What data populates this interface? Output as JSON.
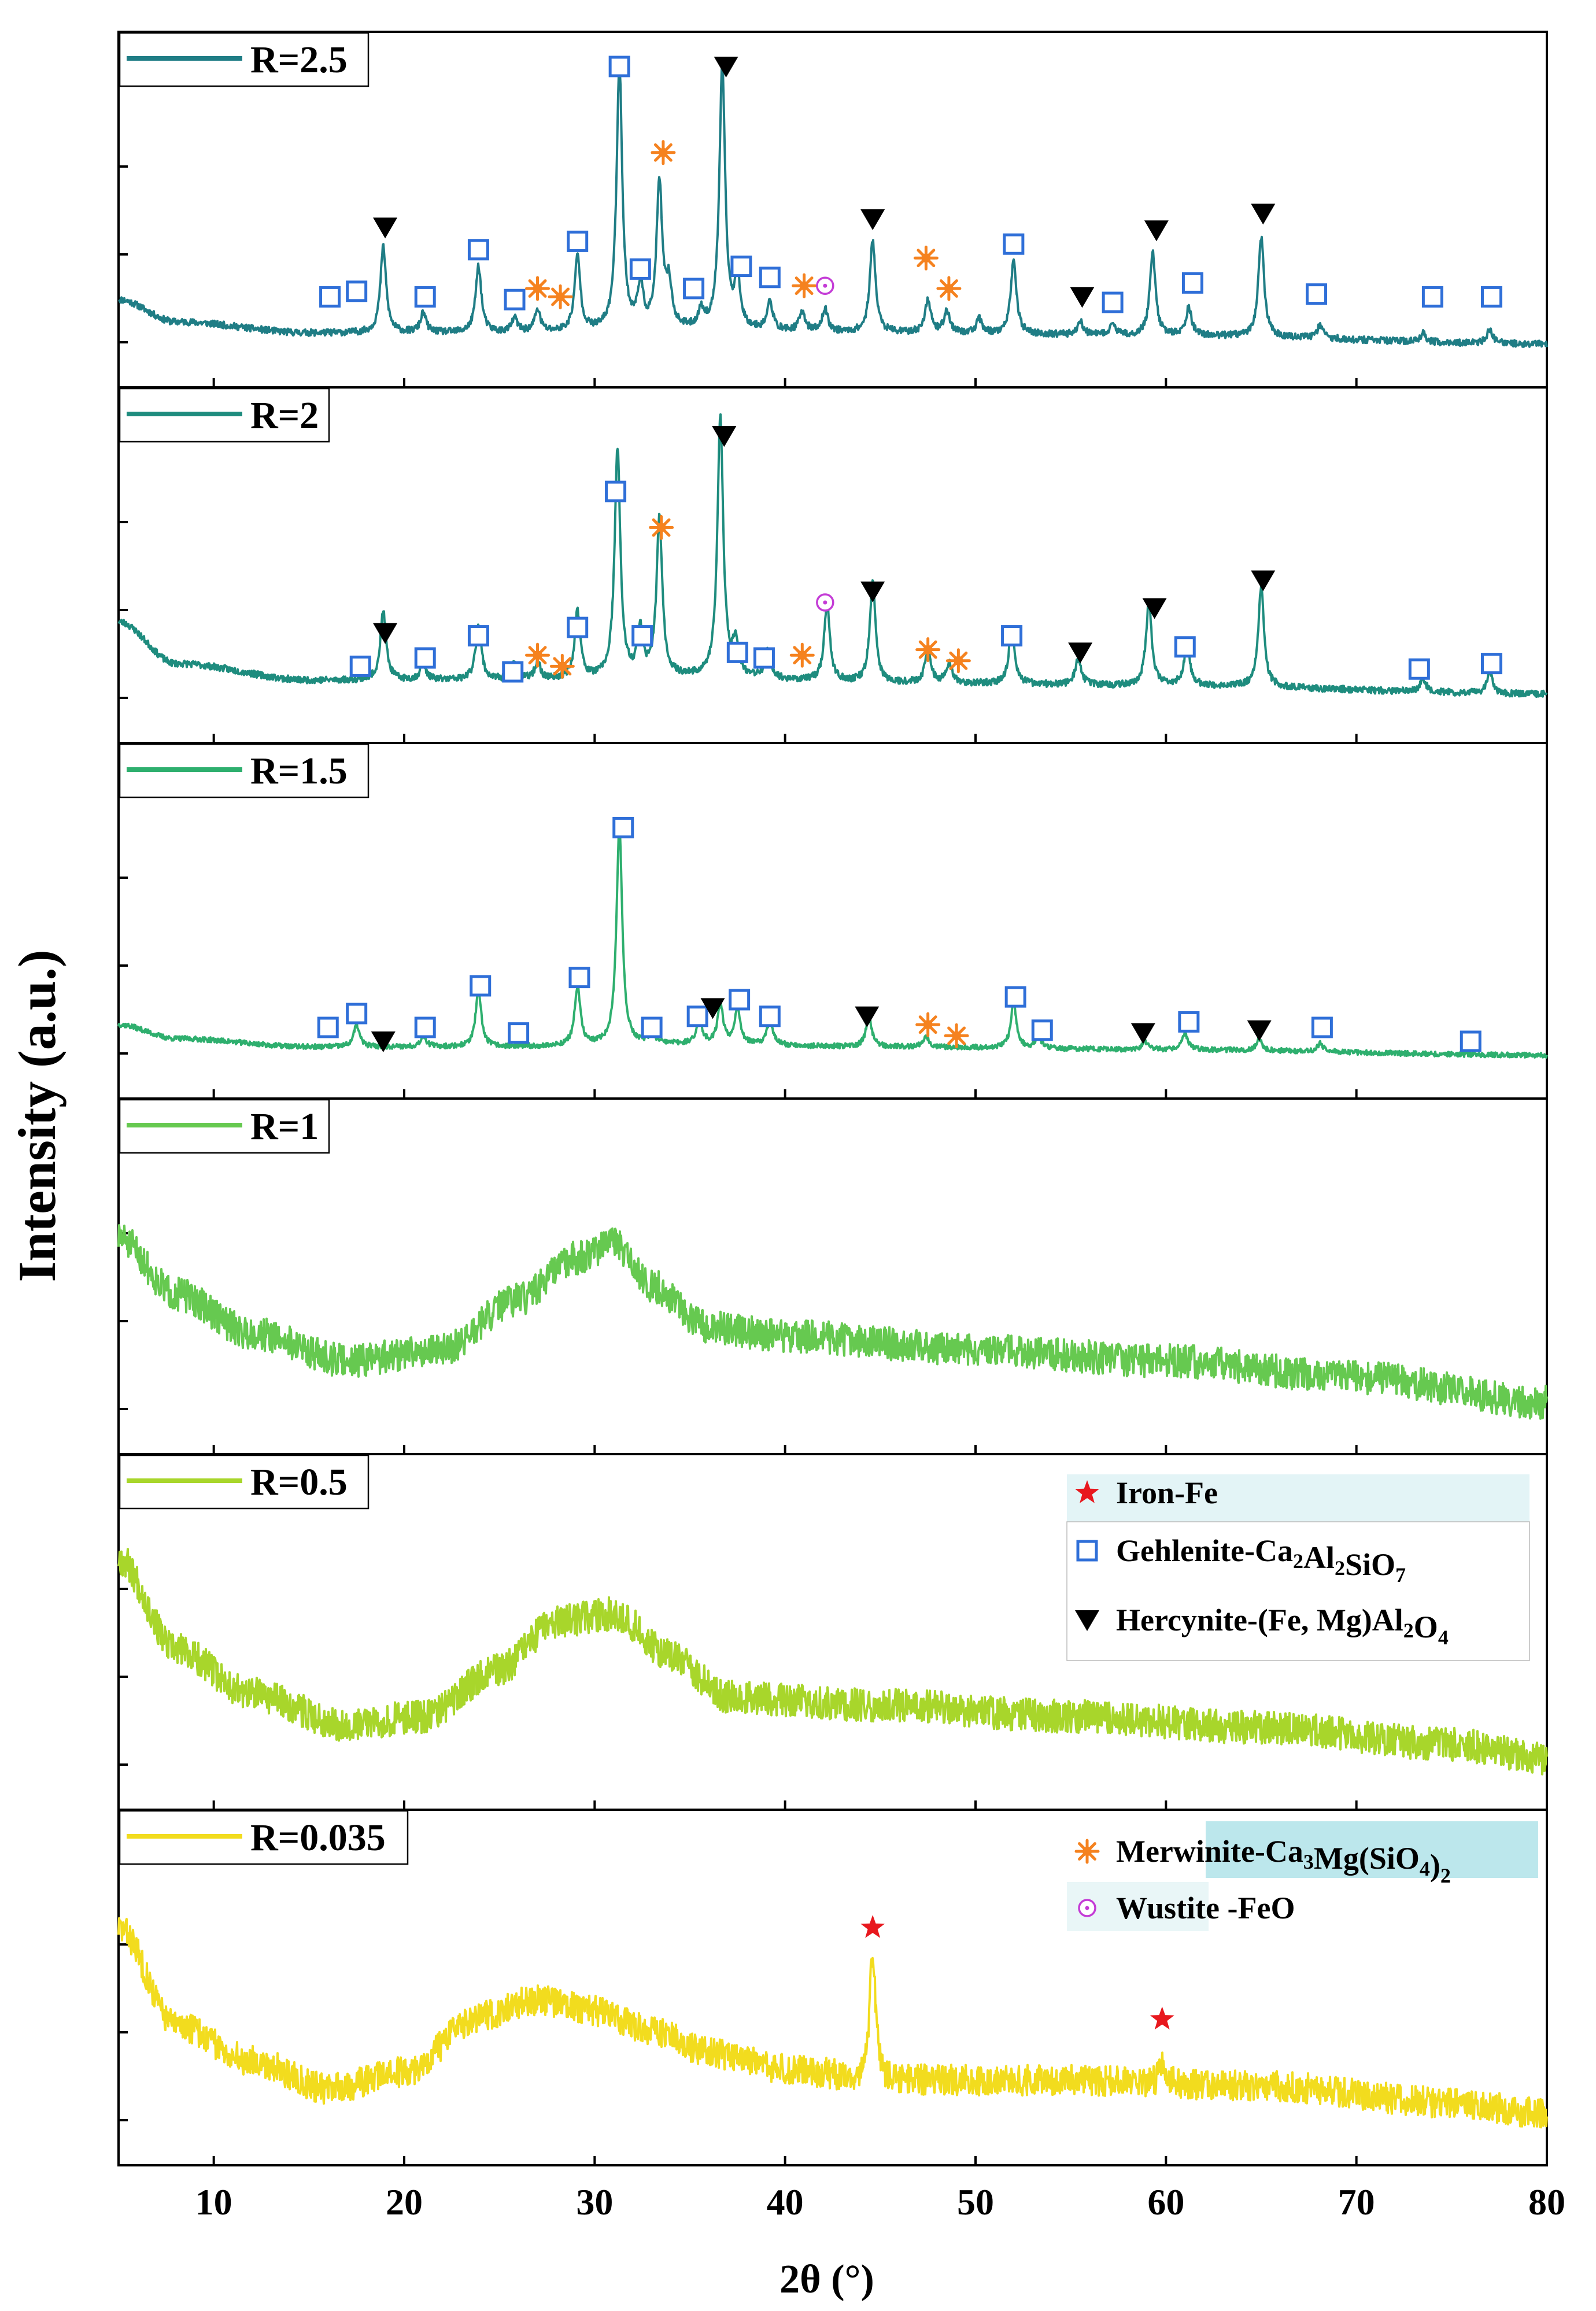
{
  "chart_data": {
    "type": "line",
    "title": "",
    "xlabel": "2θ (°)",
    "ylabel": "Intensity (a.u.)",
    "xlim": [
      5,
      80
    ],
    "xticks": [
      10,
      20,
      30,
      40,
      50,
      60,
      70,
      80
    ],
    "xtick_labels": [
      "10",
      "20",
      "30",
      "40",
      "50",
      "60",
      "70",
      "80"
    ],
    "panels": [
      {
        "label": "R=2.5",
        "color": "#1f7d85",
        "baseline": [
          [
            5,
            0.16
          ],
          [
            8,
            0.08
          ],
          [
            15,
            0.04
          ],
          [
            25,
            0.04
          ],
          [
            35,
            0.05
          ],
          [
            45,
            0.04
          ],
          [
            60,
            0.03
          ],
          [
            80,
            0.0
          ]
        ],
        "humps": [],
        "noise": 0.012,
        "seed": 11,
        "peaks": [
          [
            18.9,
            0.31
          ],
          [
            21.0,
            0.07
          ],
          [
            23.9,
            0.24
          ],
          [
            25.8,
            0.05
          ],
          [
            27.0,
            0.08
          ],
          [
            29.1,
            0.27
          ],
          [
            31.3,
            0.95
          ],
          [
            32.4,
            0.15
          ],
          [
            33.4,
            0.52
          ],
          [
            33.9,
            0.15
          ],
          [
            35.6,
            0.06
          ],
          [
            36.7,
            0.95
          ],
          [
            37.5,
            0.18
          ],
          [
            39.2,
            0.1
          ],
          [
            40.9,
            0.07
          ],
          [
            42.1,
            0.08
          ],
          [
            44.6,
            0.33
          ],
          [
            47.5,
            0.12
          ],
          [
            48.5,
            0.08
          ],
          [
            50.2,
            0.05
          ],
          [
            52.0,
            0.26
          ],
          [
            55.5,
            0.05
          ],
          [
            57.2,
            0.04
          ],
          [
            59.3,
            0.3
          ],
          [
            61.2,
            0.1
          ],
          [
            65.0,
            0.36
          ],
          [
            68.1,
            0.05
          ],
          [
            73.5,
            0.03
          ],
          [
            77.0,
            0.05
          ]
        ],
        "markers": [
          {
            "type": "square",
            "x": 16.1,
            "y": 0.17
          },
          {
            "type": "square",
            "x": 17.5,
            "y": 0.19
          },
          {
            "type": "square",
            "x": 21.1,
            "y": 0.17
          },
          {
            "type": "square",
            "x": 23.9,
            "y": 0.34
          },
          {
            "type": "square",
            "x": 25.8,
            "y": 0.16
          },
          {
            "type": "square",
            "x": 29.1,
            "y": 0.37
          },
          {
            "type": "square",
            "x": 31.3,
            "y": 1.0
          },
          {
            "type": "square",
            "x": 32.4,
            "y": 0.27
          },
          {
            "type": "square",
            "x": 35.2,
            "y": 0.2
          },
          {
            "type": "square",
            "x": 37.7,
            "y": 0.28
          },
          {
            "type": "square",
            "x": 39.2,
            "y": 0.24
          },
          {
            "type": "square",
            "x": 52.0,
            "y": 0.36
          },
          {
            "type": "square",
            "x": 57.2,
            "y": 0.15
          },
          {
            "type": "square",
            "x": 61.4,
            "y": 0.22
          },
          {
            "type": "square",
            "x": 67.9,
            "y": 0.18
          },
          {
            "type": "square",
            "x": 74.0,
            "y": 0.17
          },
          {
            "type": "square",
            "x": 77.1,
            "y": 0.17
          },
          {
            "type": "triangle",
            "x": 19.0,
            "y": 0.42
          },
          {
            "type": "triangle",
            "x": 36.9,
            "y": 1.0
          },
          {
            "type": "triangle",
            "x": 44.6,
            "y": 0.45
          },
          {
            "type": "triangle",
            "x": 55.6,
            "y": 0.17
          },
          {
            "type": "triangle",
            "x": 59.5,
            "y": 0.41
          },
          {
            "type": "triangle",
            "x": 65.1,
            "y": 0.47
          },
          {
            "type": "asterisk",
            "x": 27.0,
            "y": 0.2
          },
          {
            "type": "asterisk",
            "x": 28.2,
            "y": 0.17
          },
          {
            "type": "asterisk",
            "x": 33.6,
            "y": 0.69
          },
          {
            "type": "asterisk",
            "x": 41.0,
            "y": 0.21
          },
          {
            "type": "asterisk",
            "x": 47.4,
            "y": 0.31
          },
          {
            "type": "asterisk",
            "x": 48.6,
            "y": 0.2
          },
          {
            "type": "circle",
            "x": 42.1,
            "y": 0.21
          }
        ]
      },
      {
        "label": "R=2",
        "color": "#1e8c7e",
        "baseline": [
          [
            5,
            0.28
          ],
          [
            8,
            0.13
          ],
          [
            15,
            0.07
          ],
          [
            25,
            0.07
          ],
          [
            35,
            0.08
          ],
          [
            45,
            0.06
          ],
          [
            60,
            0.05
          ],
          [
            80,
            0.02
          ]
        ],
        "humps": [],
        "noise": 0.012,
        "seed": 23,
        "peaks": [
          [
            18.9,
            0.25
          ],
          [
            21.0,
            0.06
          ],
          [
            23.9,
            0.2
          ],
          [
            25.8,
            0.06
          ],
          [
            27.0,
            0.06
          ],
          [
            29.1,
            0.24
          ],
          [
            31.2,
            0.82
          ],
          [
            32.4,
            0.16
          ],
          [
            33.4,
            0.57
          ],
          [
            36.6,
            0.94
          ],
          [
            37.4,
            0.12
          ],
          [
            39.1,
            0.1
          ],
          [
            42.2,
            0.28
          ],
          [
            44.6,
            0.36
          ],
          [
            47.5,
            0.12
          ],
          [
            48.6,
            0.07
          ],
          [
            51.9,
            0.2
          ],
          [
            55.4,
            0.1
          ],
          [
            59.1,
            0.3
          ],
          [
            61.1,
            0.15
          ],
          [
            65.0,
            0.36
          ],
          [
            73.5,
            0.05
          ],
          [
            77.0,
            0.08
          ]
        ],
        "markers": [
          {
            "type": "square",
            "x": 17.7,
            "y": 0.12
          },
          {
            "type": "square",
            "x": 21.1,
            "y": 0.15
          },
          {
            "type": "square",
            "x": 23.9,
            "y": 0.23
          },
          {
            "type": "square",
            "x": 25.7,
            "y": 0.1
          },
          {
            "type": "square",
            "x": 29.1,
            "y": 0.26
          },
          {
            "type": "square",
            "x": 31.1,
            "y": 0.75
          },
          {
            "type": "square",
            "x": 32.5,
            "y": 0.23
          },
          {
            "type": "square",
            "x": 37.5,
            "y": 0.17
          },
          {
            "type": "square",
            "x": 38.9,
            "y": 0.15
          },
          {
            "type": "square",
            "x": 51.9,
            "y": 0.23
          },
          {
            "type": "square",
            "x": 61.0,
            "y": 0.19
          },
          {
            "type": "square",
            "x": 73.3,
            "y": 0.11
          },
          {
            "type": "square",
            "x": 77.1,
            "y": 0.13
          },
          {
            "type": "triangle",
            "x": 19.0,
            "y": 0.24
          },
          {
            "type": "triangle",
            "x": 36.8,
            "y": 0.95
          },
          {
            "type": "triangle",
            "x": 44.6,
            "y": 0.39
          },
          {
            "type": "triangle",
            "x": 55.5,
            "y": 0.17
          },
          {
            "type": "triangle",
            "x": 59.4,
            "y": 0.33
          },
          {
            "type": "triangle",
            "x": 65.1,
            "y": 0.43
          },
          {
            "type": "asterisk",
            "x": 27.0,
            "y": 0.16
          },
          {
            "type": "asterisk",
            "x": 28.3,
            "y": 0.12
          },
          {
            "type": "asterisk",
            "x": 33.5,
            "y": 0.62
          },
          {
            "type": "asterisk",
            "x": 40.9,
            "y": 0.16
          },
          {
            "type": "asterisk",
            "x": 47.5,
            "y": 0.18
          },
          {
            "type": "asterisk",
            "x": 49.1,
            "y": 0.14
          },
          {
            "type": "circle",
            "x": 42.1,
            "y": 0.35
          }
        ]
      },
      {
        "label": "R=1.5",
        "color": "#2eaf6e",
        "baseline": [
          [
            5,
            0.11
          ],
          [
            8,
            0.06
          ],
          [
            15,
            0.03
          ],
          [
            25,
            0.03
          ],
          [
            35,
            0.04
          ],
          [
            45,
            0.03
          ],
          [
            60,
            0.02
          ],
          [
            80,
            0.0
          ]
        ],
        "humps": [],
        "noise": 0.009,
        "seed": 37,
        "peaks": [
          [
            17.5,
            0.08
          ],
          [
            21.0,
            0.04
          ],
          [
            23.9,
            0.2
          ],
          [
            29.1,
            0.21
          ],
          [
            31.3,
            0.79
          ],
          [
            33.0,
            0.04
          ],
          [
            35.5,
            0.08
          ],
          [
            36.6,
            0.14
          ],
          [
            37.5,
            0.13
          ],
          [
            39.2,
            0.09
          ],
          [
            44.4,
            0.11
          ],
          [
            47.4,
            0.04
          ],
          [
            52.0,
            0.16
          ],
          [
            53.3,
            0.04
          ],
          [
            58.9,
            0.03
          ],
          [
            61.0,
            0.06
          ],
          [
            64.9,
            0.04
          ],
          [
            68.1,
            0.03
          ]
        ],
        "markers": [
          {
            "type": "square",
            "x": 16.0,
            "y": 0.1
          },
          {
            "type": "square",
            "x": 17.5,
            "y": 0.15
          },
          {
            "type": "square",
            "x": 21.1,
            "y": 0.1
          },
          {
            "type": "square",
            "x": 24.0,
            "y": 0.25
          },
          {
            "type": "square",
            "x": 26.0,
            "y": 0.08
          },
          {
            "type": "square",
            "x": 29.2,
            "y": 0.28
          },
          {
            "type": "square",
            "x": 31.5,
            "y": 0.82
          },
          {
            "type": "square",
            "x": 33.0,
            "y": 0.1
          },
          {
            "type": "square",
            "x": 35.4,
            "y": 0.14
          },
          {
            "type": "square",
            "x": 37.6,
            "y": 0.2
          },
          {
            "type": "square",
            "x": 39.2,
            "y": 0.14
          },
          {
            "type": "square",
            "x": 52.1,
            "y": 0.21
          },
          {
            "type": "square",
            "x": 53.5,
            "y": 0.09
          },
          {
            "type": "square",
            "x": 61.2,
            "y": 0.12
          },
          {
            "type": "square",
            "x": 68.2,
            "y": 0.1
          },
          {
            "type": "square",
            "x": 76.0,
            "y": 0.05
          },
          {
            "type": "triangle",
            "x": 18.9,
            "y": 0.05
          },
          {
            "type": "triangle",
            "x": 36.2,
            "y": 0.17
          },
          {
            "type": "triangle",
            "x": 44.3,
            "y": 0.14
          },
          {
            "type": "triangle",
            "x": 58.8,
            "y": 0.08
          },
          {
            "type": "triangle",
            "x": 64.9,
            "y": 0.09
          },
          {
            "type": "asterisk",
            "x": 47.5,
            "y": 0.11
          },
          {
            "type": "asterisk",
            "x": 49.0,
            "y": 0.07
          }
        ]
      },
      {
        "label": "R=1",
        "color": "#66c950",
        "baseline": [
          [
            5,
            0.62
          ],
          [
            8,
            0.42
          ],
          [
            12,
            0.28
          ],
          [
            17,
            0.18
          ],
          [
            22,
            0.22
          ],
          [
            26,
            0.4
          ],
          [
            29,
            0.55
          ],
          [
            31,
            0.6
          ],
          [
            33,
            0.45
          ],
          [
            36,
            0.3
          ],
          [
            40,
            0.27
          ],
          [
            50,
            0.22
          ],
          [
            60,
            0.18
          ],
          [
            70,
            0.12
          ],
          [
            80,
            0.03
          ]
        ],
        "humps": [],
        "noise": 0.06,
        "seed": 51,
        "peaks": [],
        "markers": []
      },
      {
        "label": "R=0.5",
        "color": "#a8d62b",
        "baseline": [
          [
            5,
            0.75
          ],
          [
            8,
            0.42
          ],
          [
            12,
            0.26
          ],
          [
            17,
            0.15
          ],
          [
            21,
            0.18
          ],
          [
            25,
            0.35
          ],
          [
            28,
            0.52
          ],
          [
            31,
            0.55
          ],
          [
            34,
            0.4
          ],
          [
            37,
            0.25
          ],
          [
            45,
            0.22
          ],
          [
            55,
            0.18
          ],
          [
            65,
            0.14
          ],
          [
            75,
            0.08
          ],
          [
            80,
            0.03
          ]
        ],
        "humps": [],
        "noise": 0.06,
        "seed": 67,
        "peaks": [],
        "markers": []
      },
      {
        "label": "R=0.035",
        "color": "#f2dc1e",
        "baseline": [
          [
            5,
            0.7
          ],
          [
            8,
            0.35
          ],
          [
            12,
            0.22
          ],
          [
            16,
            0.12
          ],
          [
            20,
            0.18
          ],
          [
            24,
            0.38
          ],
          [
            27,
            0.44
          ],
          [
            30,
            0.4
          ],
          [
            33,
            0.33
          ],
          [
            36,
            0.25
          ],
          [
            40,
            0.19
          ],
          [
            45,
            0.15
          ],
          [
            55,
            0.15
          ],
          [
            65,
            0.13
          ],
          [
            75,
            0.07
          ],
          [
            80,
            0.03
          ]
        ],
        "humps": [],
        "noise": 0.055,
        "seed": 83,
        "peaks": [
          [
            44.6,
            0.48
          ],
          [
            59.8,
            0.06
          ]
        ],
        "markers": [
          {
            "type": "star",
            "x": 44.6,
            "y": 0.7
          },
          {
            "type": "star",
            "x": 59.8,
            "y": 0.37
          }
        ]
      }
    ],
    "legend_upper": [
      {
        "marker": "star",
        "label": "Iron-Fe"
      },
      {
        "marker": "square",
        "label": "Gehlenite-Ca2Al2SiO7"
      },
      {
        "marker": "triangle",
        "label": "Hercynite-(Fe, Mg)Al2O4"
      }
    ],
    "legend_lower": [
      {
        "marker": "asterisk",
        "label": "Merwinite-Ca3Mg(SiO4)2"
      },
      {
        "marker": "circle",
        "label": "Wustite -FeO"
      }
    ],
    "marker_colors": {
      "star": "#e8181e",
      "square": "#2f6fd8",
      "triangle": "#000000",
      "asterisk": "#f5821f",
      "circle": "#c43cd6"
    }
  }
}
